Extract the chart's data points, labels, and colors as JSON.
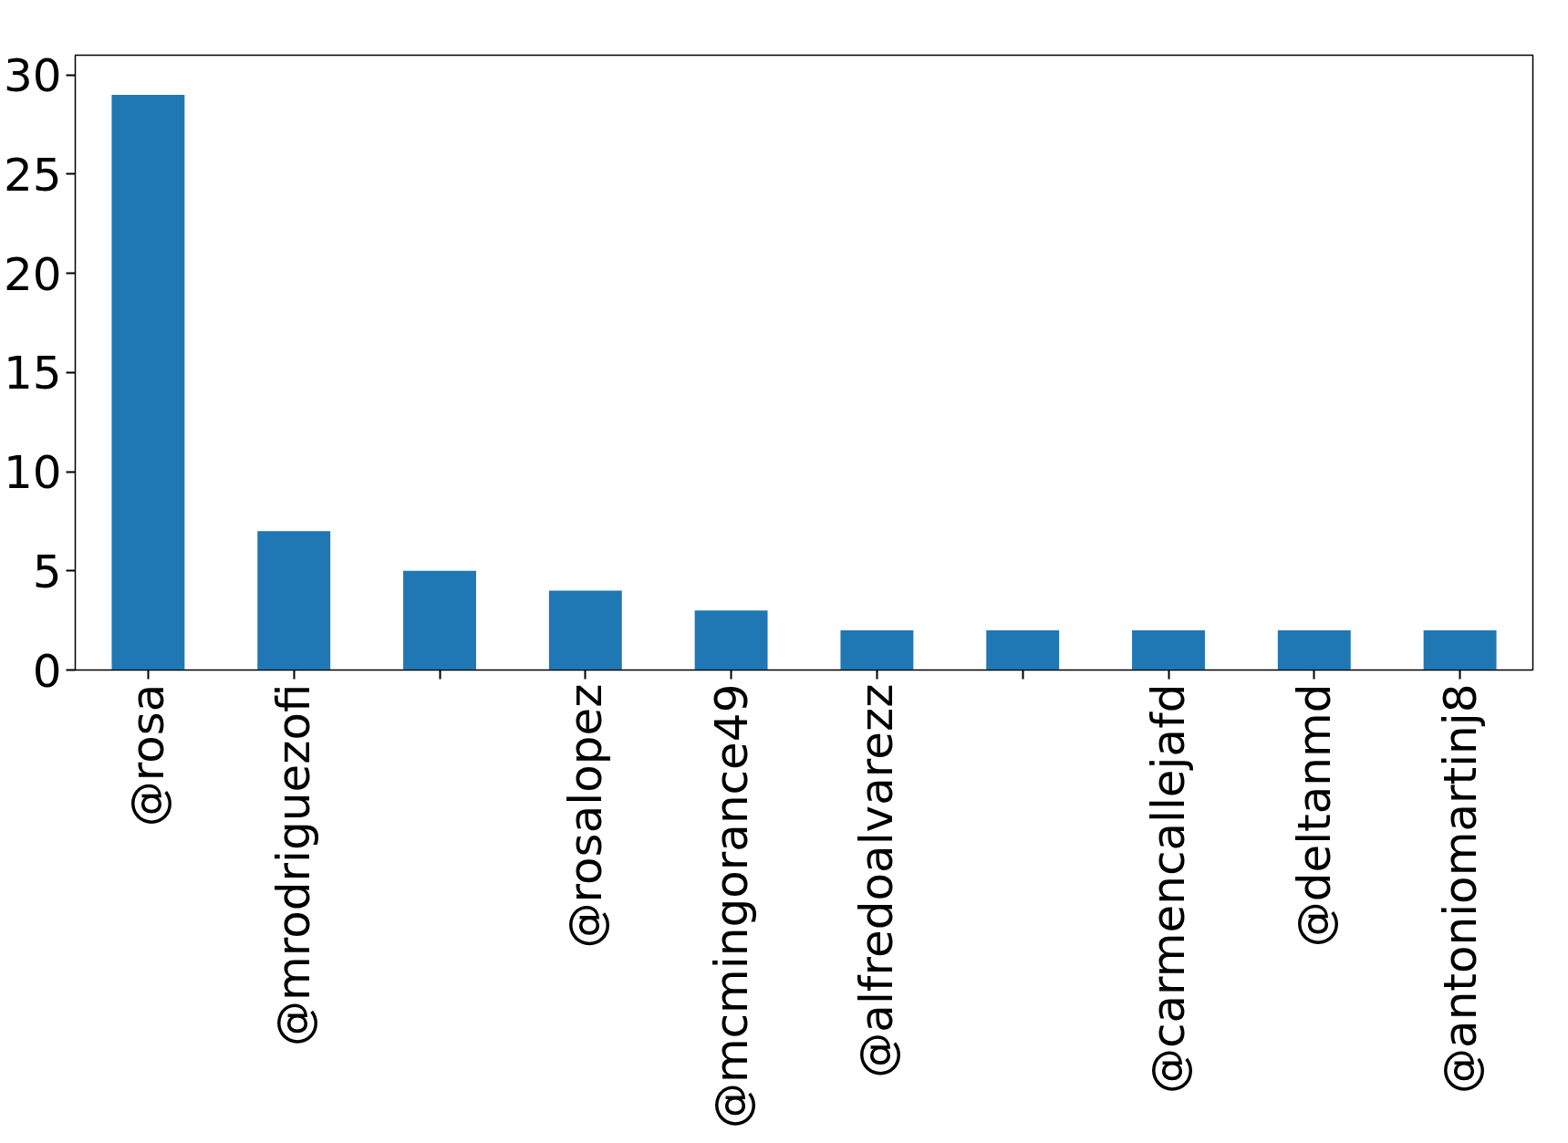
{
  "chart_data": {
    "type": "bar",
    "categories": [
      "@rosa",
      "@mrodriguezofi",
      null,
      "@rosalopez",
      "@mcmingorance49",
      "@alfredoalvarezz",
      null,
      "@carmencallejafd",
      "@deltanmd",
      "@antoniomartinj8"
    ],
    "values": [
      29,
      7,
      5,
      4,
      3,
      2,
      2,
      2,
      2,
      2
    ],
    "color": "#1f77b4",
    "ylim": [
      0,
      31
    ],
    "yticks": [
      0,
      5,
      10,
      15,
      20,
      25,
      30
    ],
    "grid": false
  }
}
